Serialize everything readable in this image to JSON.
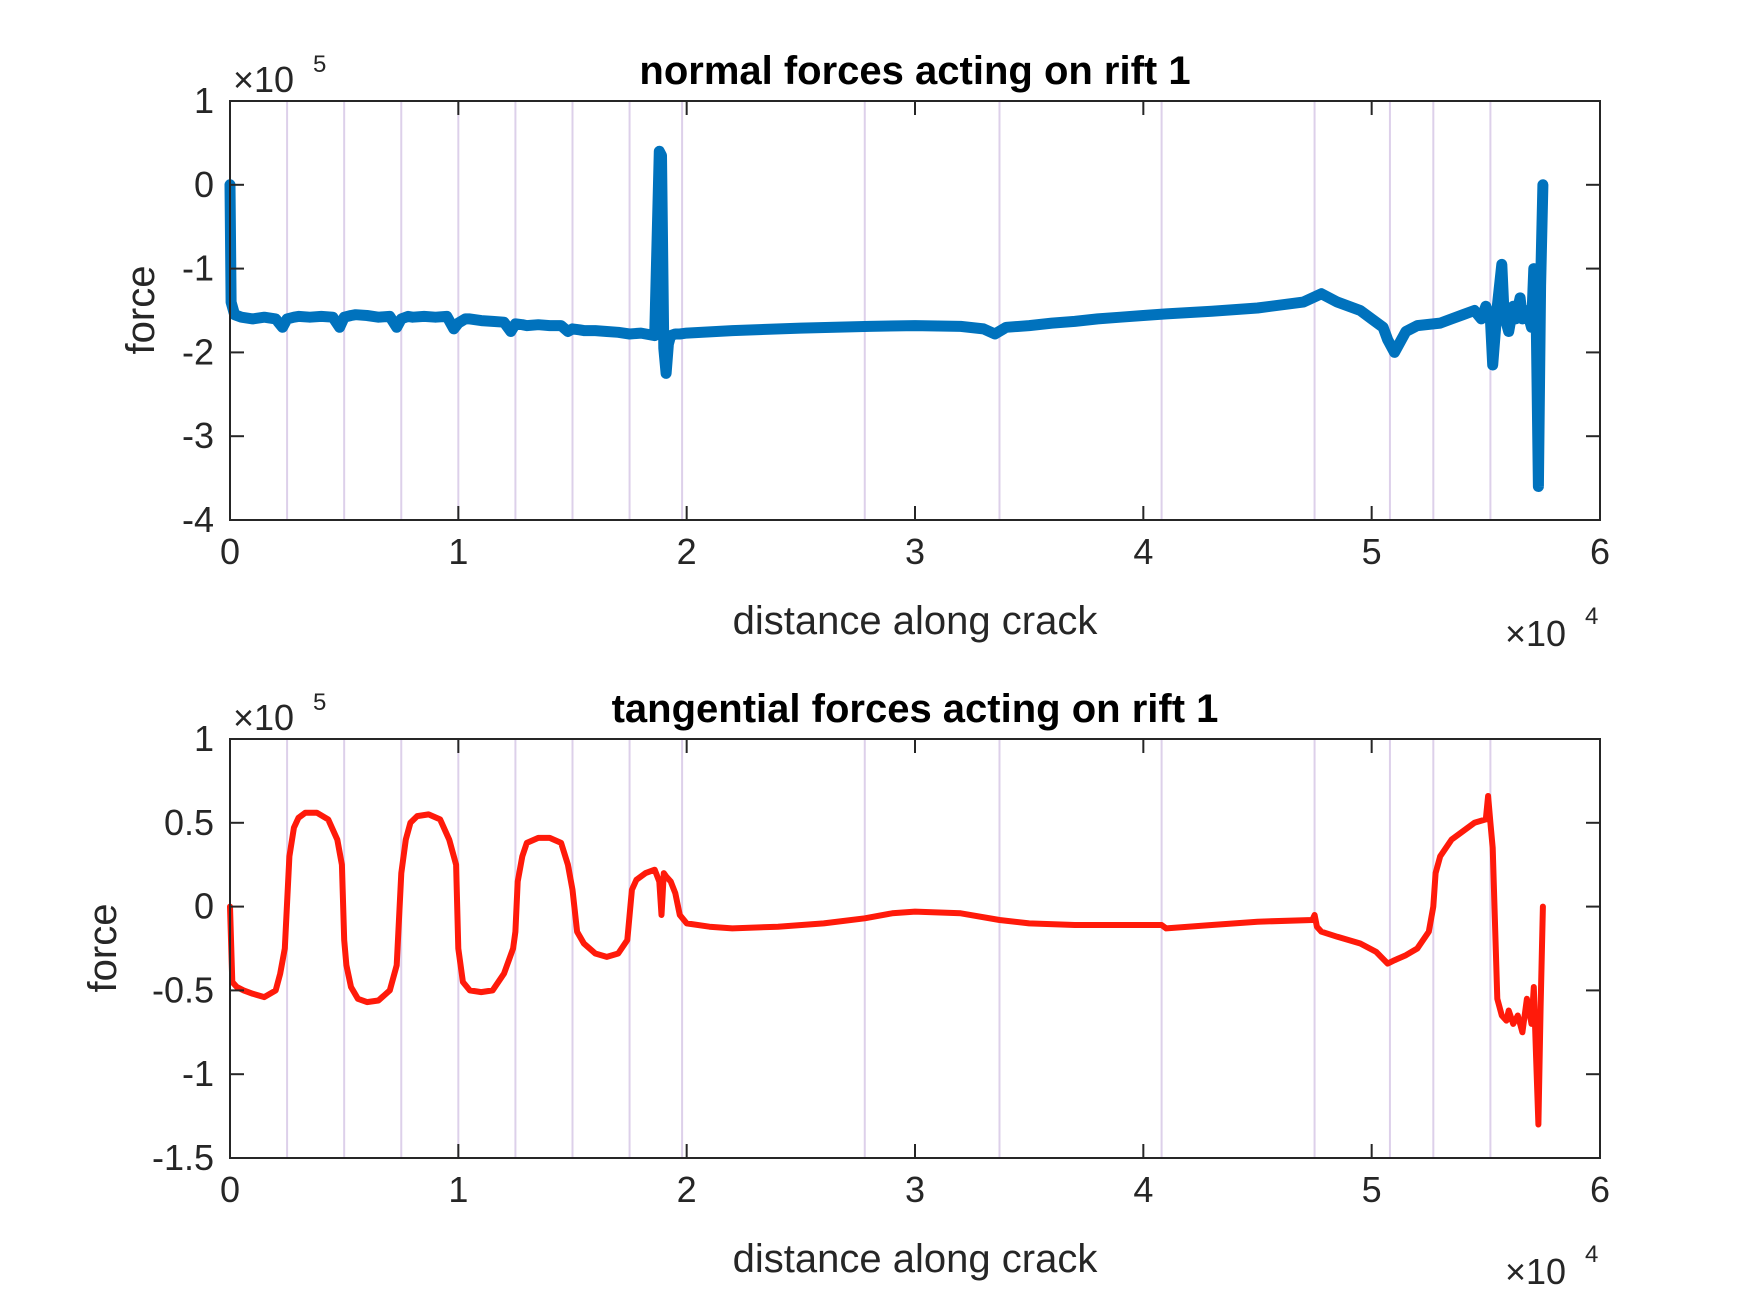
{
  "chart_data": [
    {
      "type": "line",
      "title": "normal forces acting on rift 1",
      "xlabel": "distance along crack",
      "ylabel": "force",
      "x_multiplier": {
        "base": "×10",
        "exp": "4"
      },
      "y_multiplier": {
        "base": "×10",
        "exp": "5"
      },
      "xlim": [
        0,
        6
      ],
      "ylim": [
        -4,
        1
      ],
      "xticks": [
        0,
        1,
        2,
        3,
        4,
        5,
        6
      ],
      "yticks": [
        -4,
        -3,
        -2,
        -1,
        0,
        1
      ],
      "grid": false,
      "vertical_markers": [
        0.25,
        0.5,
        0.75,
        1.0,
        1.25,
        1.5,
        1.75,
        1.98,
        2.78,
        3.37,
        4.08,
        4.75,
        5.08,
        5.27,
        5.52
      ],
      "marker_color": "#ddd0ea",
      "series": [
        {
          "color": "#0072BD",
          "line_width": 11,
          "x": [
            0.0,
            0.005,
            0.02,
            0.05,
            0.1,
            0.15,
            0.2,
            0.23,
            0.25,
            0.28,
            0.3,
            0.35,
            0.4,
            0.45,
            0.48,
            0.5,
            0.53,
            0.55,
            0.6,
            0.65,
            0.7,
            0.73,
            0.75,
            0.78,
            0.8,
            0.85,
            0.9,
            0.95,
            0.98,
            1.0,
            1.03,
            1.05,
            1.1,
            1.15,
            1.2,
            1.23,
            1.25,
            1.28,
            1.3,
            1.35,
            1.4,
            1.45,
            1.48,
            1.5,
            1.53,
            1.55,
            1.6,
            1.65,
            1.7,
            1.75,
            1.8,
            1.86,
            1.88,
            1.89,
            1.9,
            1.91,
            1.92,
            1.93,
            1.95,
            1.97,
            2.0,
            2.2,
            2.5,
            2.8,
            3.0,
            3.2,
            3.3,
            3.35,
            3.4,
            3.5,
            3.6,
            3.7,
            3.8,
            3.9,
            4.0,
            4.1,
            4.3,
            4.5,
            4.7,
            4.78,
            4.85,
            4.95,
            5.0,
            5.05,
            5.07,
            5.1,
            5.15,
            5.2,
            5.3,
            5.35,
            5.4,
            5.45,
            5.48,
            5.5,
            5.52,
            5.53,
            5.55,
            5.57,
            5.58,
            5.6,
            5.62,
            5.63,
            5.65,
            5.66,
            5.68,
            5.7,
            5.71,
            5.72,
            5.73,
            5.74,
            5.75
          ],
          "y": [
            0.0,
            -1.4,
            -1.55,
            -1.58,
            -1.6,
            -1.58,
            -1.6,
            -1.7,
            -1.6,
            -1.58,
            -1.57,
            -1.58,
            -1.57,
            -1.58,
            -1.7,
            -1.58,
            -1.56,
            -1.55,
            -1.56,
            -1.58,
            -1.57,
            -1.7,
            -1.6,
            -1.57,
            -1.58,
            -1.57,
            -1.58,
            -1.57,
            -1.72,
            -1.65,
            -1.6,
            -1.6,
            -1.62,
            -1.63,
            -1.64,
            -1.75,
            -1.66,
            -1.67,
            -1.68,
            -1.67,
            -1.68,
            -1.68,
            -1.75,
            -1.72,
            -1.73,
            -1.74,
            -1.74,
            -1.75,
            -1.76,
            -1.78,
            -1.77,
            -1.8,
            0.4,
            0.35,
            -1.95,
            -2.25,
            -1.9,
            -1.8,
            -1.78,
            -1.78,
            -1.77,
            -1.74,
            -1.71,
            -1.69,
            -1.68,
            -1.69,
            -1.72,
            -1.78,
            -1.7,
            -1.68,
            -1.65,
            -1.63,
            -1.6,
            -1.58,
            -1.56,
            -1.54,
            -1.51,
            -1.47,
            -1.4,
            -1.3,
            -1.4,
            -1.5,
            -1.6,
            -1.7,
            -1.85,
            -2.0,
            -1.75,
            -1.68,
            -1.65,
            -1.6,
            -1.55,
            -1.5,
            -1.6,
            -1.45,
            -1.6,
            -2.15,
            -1.45,
            -0.95,
            -1.55,
            -1.75,
            -1.45,
            -1.6,
            -1.35,
            -1.6,
            -1.5,
            -1.7,
            -1.0,
            -1.5,
            -3.6,
            -1.2,
            0.0
          ]
        }
      ]
    },
    {
      "type": "line",
      "title": "tangential forces acting on rift 1",
      "xlabel": "distance along crack",
      "ylabel": "force",
      "x_multiplier": {
        "base": "×10",
        "exp": "4"
      },
      "y_multiplier": {
        "base": "×10",
        "exp": "5"
      },
      "xlim": [
        0,
        6
      ],
      "ylim": [
        -1.5,
        1
      ],
      "xticks": [
        0,
        1,
        2,
        3,
        4,
        5,
        6
      ],
      "yticks": [
        -1.5,
        -1,
        -0.5,
        0,
        0.5,
        1
      ],
      "ytick_labels": [
        "-1.5",
        "-1",
        "-0.5",
        "0",
        "0.5",
        "1"
      ],
      "grid": false,
      "vertical_markers": [
        0.25,
        0.5,
        0.75,
        1.0,
        1.25,
        1.5,
        1.75,
        1.98,
        2.78,
        3.37,
        4.08,
        4.75,
        5.08,
        5.27,
        5.52
      ],
      "marker_color": "#ddd0ea",
      "series": [
        {
          "color": "#ff1a0a",
          "line_width": 6,
          "x": [
            0.0,
            0.01,
            0.03,
            0.06,
            0.1,
            0.15,
            0.2,
            0.22,
            0.24,
            0.26,
            0.28,
            0.3,
            0.33,
            0.38,
            0.43,
            0.47,
            0.49,
            0.5,
            0.51,
            0.53,
            0.56,
            0.6,
            0.65,
            0.7,
            0.73,
            0.75,
            0.77,
            0.79,
            0.82,
            0.87,
            0.92,
            0.96,
            0.99,
            1.0,
            1.02,
            1.05,
            1.1,
            1.15,
            1.2,
            1.24,
            1.25,
            1.26,
            1.28,
            1.3,
            1.35,
            1.4,
            1.45,
            1.48,
            1.5,
            1.52,
            1.55,
            1.6,
            1.65,
            1.7,
            1.74,
            1.75,
            1.76,
            1.78,
            1.82,
            1.86,
            1.88,
            1.89,
            1.9,
            1.91,
            1.93,
            1.95,
            1.97,
            2.0,
            2.1,
            2.2,
            2.4,
            2.6,
            2.78,
            2.9,
            3.0,
            3.2,
            3.37,
            3.5,
            3.7,
            3.9,
            4.08,
            4.1,
            4.3,
            4.5,
            4.74,
            4.75,
            4.76,
            4.78,
            4.85,
            4.95,
            5.02,
            5.07,
            5.1,
            5.15,
            5.2,
            5.25,
            5.27,
            5.28,
            5.3,
            5.35,
            5.4,
            5.45,
            5.5,
            5.51,
            5.52,
            5.53,
            5.55,
            5.57,
            5.59,
            5.6,
            5.62,
            5.64,
            5.66,
            5.68,
            5.7,
            5.71,
            5.72,
            5.73,
            5.74,
            5.75
          ],
          "y": [
            0.0,
            -0.45,
            -0.48,
            -0.5,
            -0.52,
            -0.54,
            -0.5,
            -0.4,
            -0.25,
            0.3,
            0.47,
            0.53,
            0.56,
            0.56,
            0.52,
            0.4,
            0.25,
            -0.2,
            -0.35,
            -0.48,
            -0.55,
            -0.57,
            -0.56,
            -0.5,
            -0.35,
            0.2,
            0.4,
            0.5,
            0.54,
            0.55,
            0.52,
            0.4,
            0.25,
            -0.25,
            -0.45,
            -0.5,
            -0.51,
            -0.5,
            -0.4,
            -0.25,
            -0.15,
            0.15,
            0.3,
            0.38,
            0.41,
            0.41,
            0.38,
            0.25,
            0.1,
            -0.15,
            -0.22,
            -0.28,
            -0.3,
            -0.28,
            -0.2,
            -0.05,
            0.1,
            0.16,
            0.2,
            0.22,
            0.15,
            -0.05,
            0.2,
            0.18,
            0.15,
            0.08,
            -0.05,
            -0.1,
            -0.12,
            -0.13,
            -0.12,
            -0.1,
            -0.07,
            -0.04,
            -0.03,
            -0.04,
            -0.08,
            -0.1,
            -0.11,
            -0.11,
            -0.11,
            -0.13,
            -0.11,
            -0.09,
            -0.08,
            -0.05,
            -0.12,
            -0.15,
            -0.18,
            -0.22,
            -0.27,
            -0.34,
            -0.32,
            -0.29,
            -0.25,
            -0.15,
            0.0,
            0.2,
            0.3,
            0.4,
            0.45,
            0.5,
            0.52,
            0.66,
            0.5,
            0.35,
            -0.55,
            -0.65,
            -0.68,
            -0.62,
            -0.7,
            -0.65,
            -0.75,
            -0.55,
            -0.7,
            -0.48,
            -0.9,
            -1.3,
            -0.6,
            0.0
          ]
        }
      ]
    }
  ]
}
